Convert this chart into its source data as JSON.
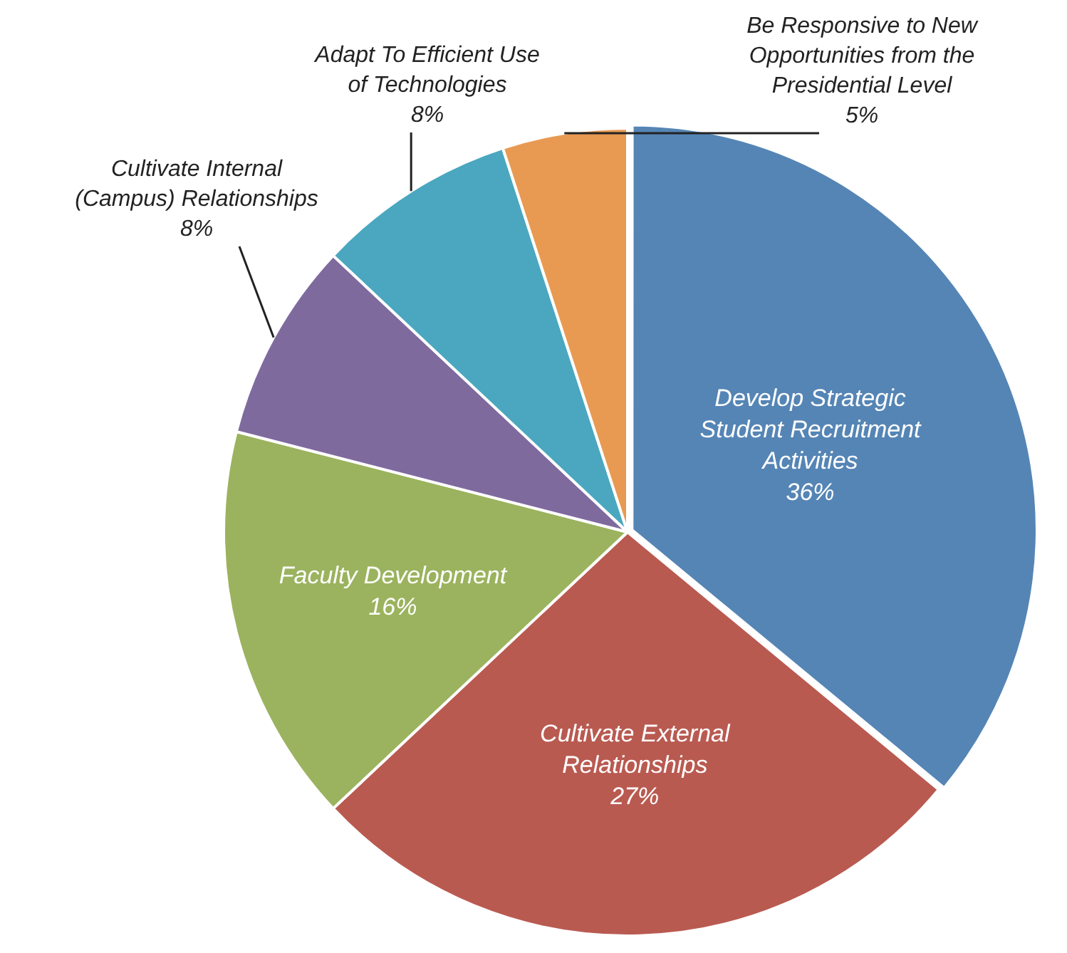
{
  "chart_data": {
    "type": "pie",
    "categories": [
      "Develop Strategic Student Recruitment Activities",
      "Cultivate External Relationships",
      "Faculty Development",
      "Cultivate Internal (Campus) Relationships",
      "Adapt To Efficient Use of Technologies",
      "Be Responsive to New Opportunities from the Presidential Level"
    ],
    "values": [
      36,
      27,
      16,
      8,
      8,
      5
    ],
    "value_labels": [
      "36%",
      "27%",
      "16%",
      "8%",
      "8%",
      "5%"
    ],
    "colors": [
      "#5585b5",
      "#b95a51",
      "#9bb35e",
      "#7f6a9e",
      "#4ba7bf",
      "#e89a52"
    ]
  }
}
